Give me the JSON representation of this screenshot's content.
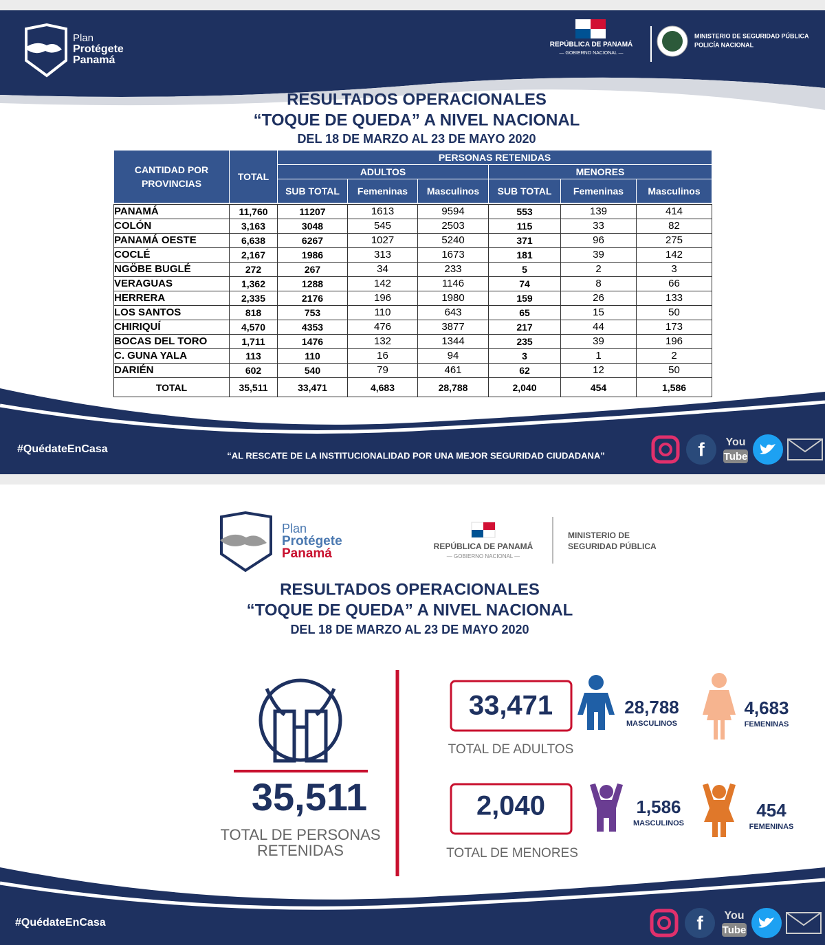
{
  "top": {
    "header": {
      "logo": [
        "Plan",
        "Protégete",
        "Panamá"
      ],
      "republic": "REPÚBLICA DE PANAMÁ",
      "government": "— GOBIERNO NACIONAL —",
      "ministry": "MINISTERIO DE SEGURIDAD PÚBLICA",
      "police": "POLICÍA NACIONAL"
    },
    "title": [
      "RESULTADOS OPERACIONALES",
      "“TOQUE DE QUEDA” A NIVEL NACIONAL",
      "DEL 18 DE MARZO AL 23 DE MAYO 2020"
    ],
    "table": {
      "corner": "CANTIDAD POR PROVINCIAS",
      "total_header": "TOTAL",
      "group": "PERSONAS RETENIDAS",
      "subgroups": [
        "ADULTOS",
        "MENORES"
      ],
      "columns": [
        "SUB TOTAL",
        "Femeninas",
        "Masculinos",
        "SUB TOTAL",
        "Femeninas",
        "Masculinos"
      ],
      "rows": [
        [
          "PANAMÁ",
          "11,760",
          "11207",
          "1613",
          "9594",
          "553",
          "139",
          "414"
        ],
        [
          "COLÓN",
          "3,163",
          "3048",
          "545",
          "2503",
          "115",
          "33",
          "82"
        ],
        [
          "PANAMÁ OESTE",
          "6,638",
          "6267",
          "1027",
          "5240",
          "371",
          "96",
          "275"
        ],
        [
          "COCLÉ",
          "2,167",
          "1986",
          "313",
          "1673",
          "181",
          "39",
          "142"
        ],
        [
          "NGÖBE BUGLÉ",
          "272",
          "267",
          "34",
          "233",
          "5",
          "2",
          "3"
        ],
        [
          "VERAGUAS",
          "1,362",
          "1288",
          "142",
          "1146",
          "74",
          "8",
          "66"
        ],
        [
          "HERRERA",
          "2,335",
          "2176",
          "196",
          "1980",
          "159",
          "26",
          "133"
        ],
        [
          "LOS SANTOS",
          "818",
          "753",
          "110",
          "643",
          "65",
          "15",
          "50"
        ],
        [
          "CHIRIQUÍ",
          "4,570",
          "4353",
          "476",
          "3877",
          "217",
          "44",
          "173"
        ],
        [
          "BOCAS DEL TORO",
          "1,711",
          "1476",
          "132",
          "1344",
          "235",
          "39",
          "196"
        ],
        [
          "C. GUNA YALA",
          "113",
          "110",
          "16",
          "94",
          "3",
          "1",
          "2"
        ],
        [
          "DARIÉN",
          "602",
          "540",
          "79",
          "461",
          "62",
          "12",
          "50"
        ]
      ],
      "total": [
        "TOTAL",
        "35,511",
        "33,471",
        "4,683",
        "28,788",
        "2,040",
        "454",
        "1,586"
      ]
    },
    "footer": {
      "hashtag": "#QuédateEnCasa",
      "slogan": "“AL RESCATE DE LA INSTITUCIONALIDAD POR UNA MEJOR SEGURIDAD CIUDADANA”"
    }
  },
  "bottom": {
    "header": {
      "logo": [
        "Plan",
        "Protégete",
        "Panamá"
      ],
      "republic": "REPÚBLICA DE PANAMÁ",
      "government": "— GOBIERNO NACIONAL —",
      "ministry": [
        "MINISTERIO DE",
        "SEGURIDAD PÚBLICA"
      ]
    },
    "title": [
      "RESULTADOS OPERACIONALES",
      "“TOQUE DE QUEDA” A NIVEL NACIONAL",
      "DEL 18 DE MARZO AL 23 DE MAYO 2020"
    ],
    "summary": {
      "total": "35,511",
      "total_label": [
        "TOTAL DE PERSONAS",
        "RETENIDAS"
      ],
      "adults": {
        "total": "33,471",
        "label": "TOTAL DE ADULTOS",
        "male": "28,788",
        "male_label": "MASCULINOS",
        "female": "4,683",
        "female_label": "FEMENINAS"
      },
      "minors": {
        "total": "2,040",
        "label": "TOTAL DE MENORES",
        "male": "1,586",
        "male_label": "MASCULINOS",
        "female": "454",
        "female_label": "FEMENINAS"
      }
    },
    "footer": {
      "hashtag": "#QuédateEnCasa"
    }
  },
  "social": {
    "facebook": "f",
    "youtube": [
      "You",
      "Tube"
    ]
  }
}
